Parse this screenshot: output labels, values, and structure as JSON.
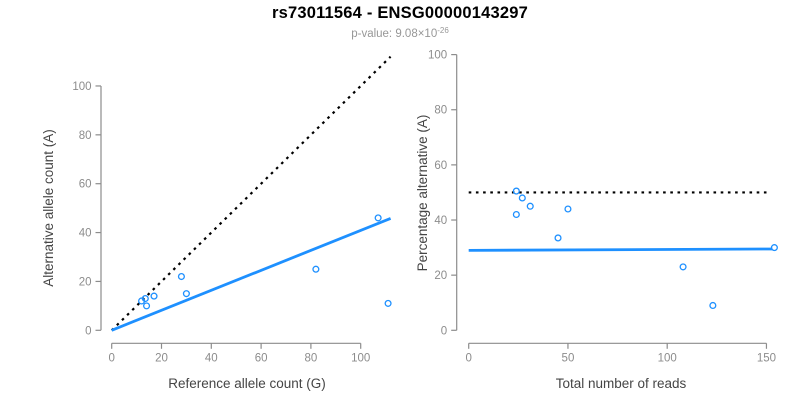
{
  "header": {
    "title": "rs73011564 - ENSG00000143297",
    "p_value_label": "p-value: 9.08×10",
    "p_value_exponent": "-26"
  },
  "colors": {
    "point": "#1E90FF",
    "fit_line": "#1E90FF",
    "dotted_line": "#000000",
    "axis": "#8C8C8C",
    "tick_text": "#8C8C8C",
    "axis_label": "#454545",
    "title": "#000000",
    "subtitle": "#979797"
  },
  "chart_data": [
    {
      "type": "scatter",
      "name": "allele-counts-scatter",
      "xlabel": "Reference allele count (G)",
      "ylabel": "Alternative allele count (A)",
      "xticks": [
        0,
        20,
        40,
        60,
        80,
        100
      ],
      "yticks": [
        0,
        20,
        40,
        60,
        80,
        100
      ],
      "xlim": [
        -4,
        113
      ],
      "ylim": [
        -4,
        113
      ],
      "grid": false,
      "legend": "none",
      "points": [
        [
          12,
          12
        ],
        [
          13.5,
          13
        ],
        [
          17,
          14
        ],
        [
          14,
          10
        ],
        [
          28,
          22
        ],
        [
          30,
          15
        ],
        [
          82,
          25
        ],
        [
          107,
          46
        ],
        [
          111,
          11
        ]
      ],
      "lines": [
        {
          "name": "identity-line",
          "style": "dotted",
          "color_key": "dotted_line",
          "from": [
            0,
            0
          ],
          "to": [
            112,
            112
          ]
        },
        {
          "name": "fit-line",
          "style": "solid",
          "color_key": "fit_line",
          "from": [
            0,
            0
          ],
          "to": [
            112,
            45.8
          ]
        }
      ]
    },
    {
      "type": "scatter",
      "name": "percentage-alternative-scatter",
      "xlabel": "Total number of reads",
      "ylabel": "Percentage alternative (A)",
      "xticks": [
        0,
        50,
        100,
        150
      ],
      "yticks": [
        0,
        20,
        40,
        60,
        80,
        100
      ],
      "xlim": [
        -6,
        161
      ],
      "ylim": [
        -4,
        104
      ],
      "grid": false,
      "legend": "none",
      "points": [
        [
          24,
          50.5
        ],
        [
          27,
          48
        ],
        [
          31,
          45
        ],
        [
          24,
          42
        ],
        [
          45,
          33.5
        ],
        [
          50,
          44
        ],
        [
          108,
          23
        ],
        [
          123,
          9
        ],
        [
          154,
          30
        ]
      ],
      "lines": [
        {
          "name": "fifty-percent-threshold-line",
          "style": "dotted",
          "color_key": "dotted_line",
          "from": [
            0,
            50
          ],
          "to": [
            151,
            50
          ]
        },
        {
          "name": "fit-line",
          "style": "solid",
          "color_key": "fit_line",
          "from": [
            0,
            29
          ],
          "to": [
            153,
            29.5
          ]
        }
      ]
    }
  ]
}
